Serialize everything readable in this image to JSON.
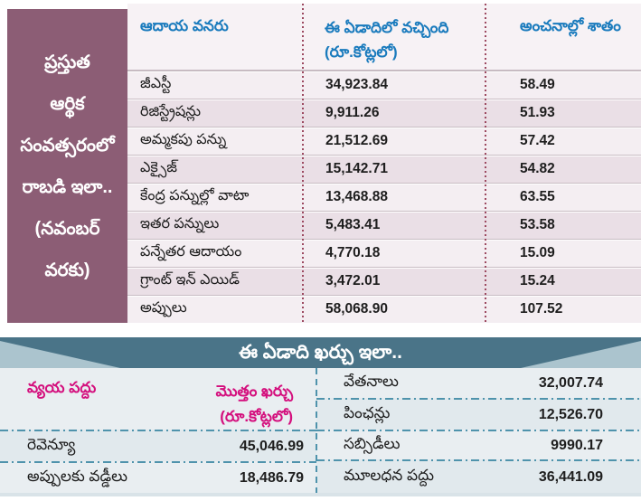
{
  "top_table": {
    "sidebar_lines": [
      "ప్రస్తుత",
      "ఆర్థిక",
      "సంవత్సరంలో",
      "రాబడి ఇలా..",
      "(నవంబర్",
      "వరకు)"
    ],
    "columns": {
      "source": "ఆదాయ వనరు",
      "received": "ఈ ఏడాదిలో వచ్చింది",
      "received_unit": "(రూ.కోట్లలో)",
      "percent": "అంచనాల్లో శాతం"
    },
    "rows": [
      {
        "label": "జీఎస్టీ",
        "amount": "34,923.84",
        "percent": "58.49"
      },
      {
        "label": "రిజిస్ట్రేషన్లు",
        "amount": "9,911.26",
        "percent": "51.93"
      },
      {
        "label": "అమ్మకపు పన్ను",
        "amount": "21,512.69",
        "percent": "57.42"
      },
      {
        "label": "ఎక్సైజ్",
        "amount": "15,142.71",
        "percent": "54.82"
      },
      {
        "label": "కేంద్ర పన్నుల్లో వాటా",
        "amount": "13,468.88",
        "percent": "63.55"
      },
      {
        "label": "ఇతర పన్నులు",
        "amount": "5,483.41",
        "percent": "53.58"
      },
      {
        "label": "పన్నేతర ఆదాయం",
        "amount": "4,770.18",
        "percent": "15.09"
      },
      {
        "label": "గ్రాంట్ ఇన్ ఎయిడ్",
        "amount": "3,472.01",
        "percent": "15.24"
      },
      {
        "label": "అప్పులు",
        "amount": "58,068.90",
        "percent": "107.52"
      }
    ]
  },
  "bottom_table": {
    "title": "ఈ ఏడాది ఖర్చు ఇలా..",
    "left": {
      "col1": "వ్యయ పద్దు",
      "col2": "మొత్తం ఖర్చు",
      "col2_unit": "(రూ.కోట్లలో)",
      "rows": [
        {
          "label": "రెవెన్యూ",
          "value": "45,046.99"
        },
        {
          "label": "అప్పులకు వడ్డీలు",
          "value": "18,486.79"
        }
      ]
    },
    "right": {
      "rows": [
        {
          "label": "వేతనాలు",
          "value": "32,007.74"
        },
        {
          "label": "పింఛన్లు",
          "value": "12,526.70"
        },
        {
          "label": "సబ్సిడీలు",
          "value": "9990.17"
        },
        {
          "label": "మూలధన పద్దు",
          "value": "36,441.09"
        }
      ]
    }
  },
  "colors": {
    "sidebar_mauve": "#8c5d75",
    "header_blue": "#1a7bbd",
    "row_stripe_dark": "#eadfe6",
    "row_stripe_light": "#f4eef2",
    "dotted_separator_maroon": "#9d4a61",
    "banner_teal": "#4a7488",
    "banner_corner_light": "#abc4ce",
    "bottom_bg": "#e9eef1",
    "pink_header": "#d40f7d",
    "teal_separator": "#4f93ac"
  },
  "chart_data": [
    {
      "type": "table",
      "title": "ప్రస్తుత ఆర్థిక సంవత్సరంలో రాబడి ఇలా.. (నవంబర్ వరకు)",
      "columns": [
        "ఆదాయ వనరు",
        "ఈ ఏడాదిలో వచ్చింది (రూ.కోట్లలో)",
        "అంచనాల్లో శాతం"
      ],
      "rows": [
        [
          "జీఎస్టీ",
          34923.84,
          58.49
        ],
        [
          "రిజిస్ట్రేషన్లు",
          9911.26,
          51.93
        ],
        [
          "అమ్మకపు పన్ను",
          21512.69,
          57.42
        ],
        [
          "ఎక్సైజ్",
          15142.71,
          54.82
        ],
        [
          "కేంద్ర పన్నుల్లో వాటా",
          13468.88,
          63.55
        ],
        [
          "ఇతర పన్నులు",
          5483.41,
          53.58
        ],
        [
          "పన్నేతర ఆదాయం",
          4770.18,
          15.09
        ],
        [
          "గ్రాంట్ ఇన్ ఎయిడ్",
          3472.01,
          15.24
        ],
        [
          "అప్పులు",
          58068.9,
          107.52
        ]
      ]
    },
    {
      "type": "table",
      "title": "ఈ ఏడాది ఖర్చు ఇలా..",
      "columns": [
        "వ్యయ పద్దు",
        "మొత్తం ఖర్చు (రూ.కోట్లలో)"
      ],
      "rows": [
        [
          "రెవెన్యూ",
          45046.99
        ],
        [
          "అప్పులకు వడ్డీలు",
          18486.79
        ],
        [
          "వేతనాలు",
          32007.74
        ],
        [
          "పింఛన్లు",
          12526.7
        ],
        [
          "సబ్సిడీలు",
          9990.17
        ],
        [
          "మూలధన పద్దు",
          36441.09
        ]
      ]
    }
  ]
}
